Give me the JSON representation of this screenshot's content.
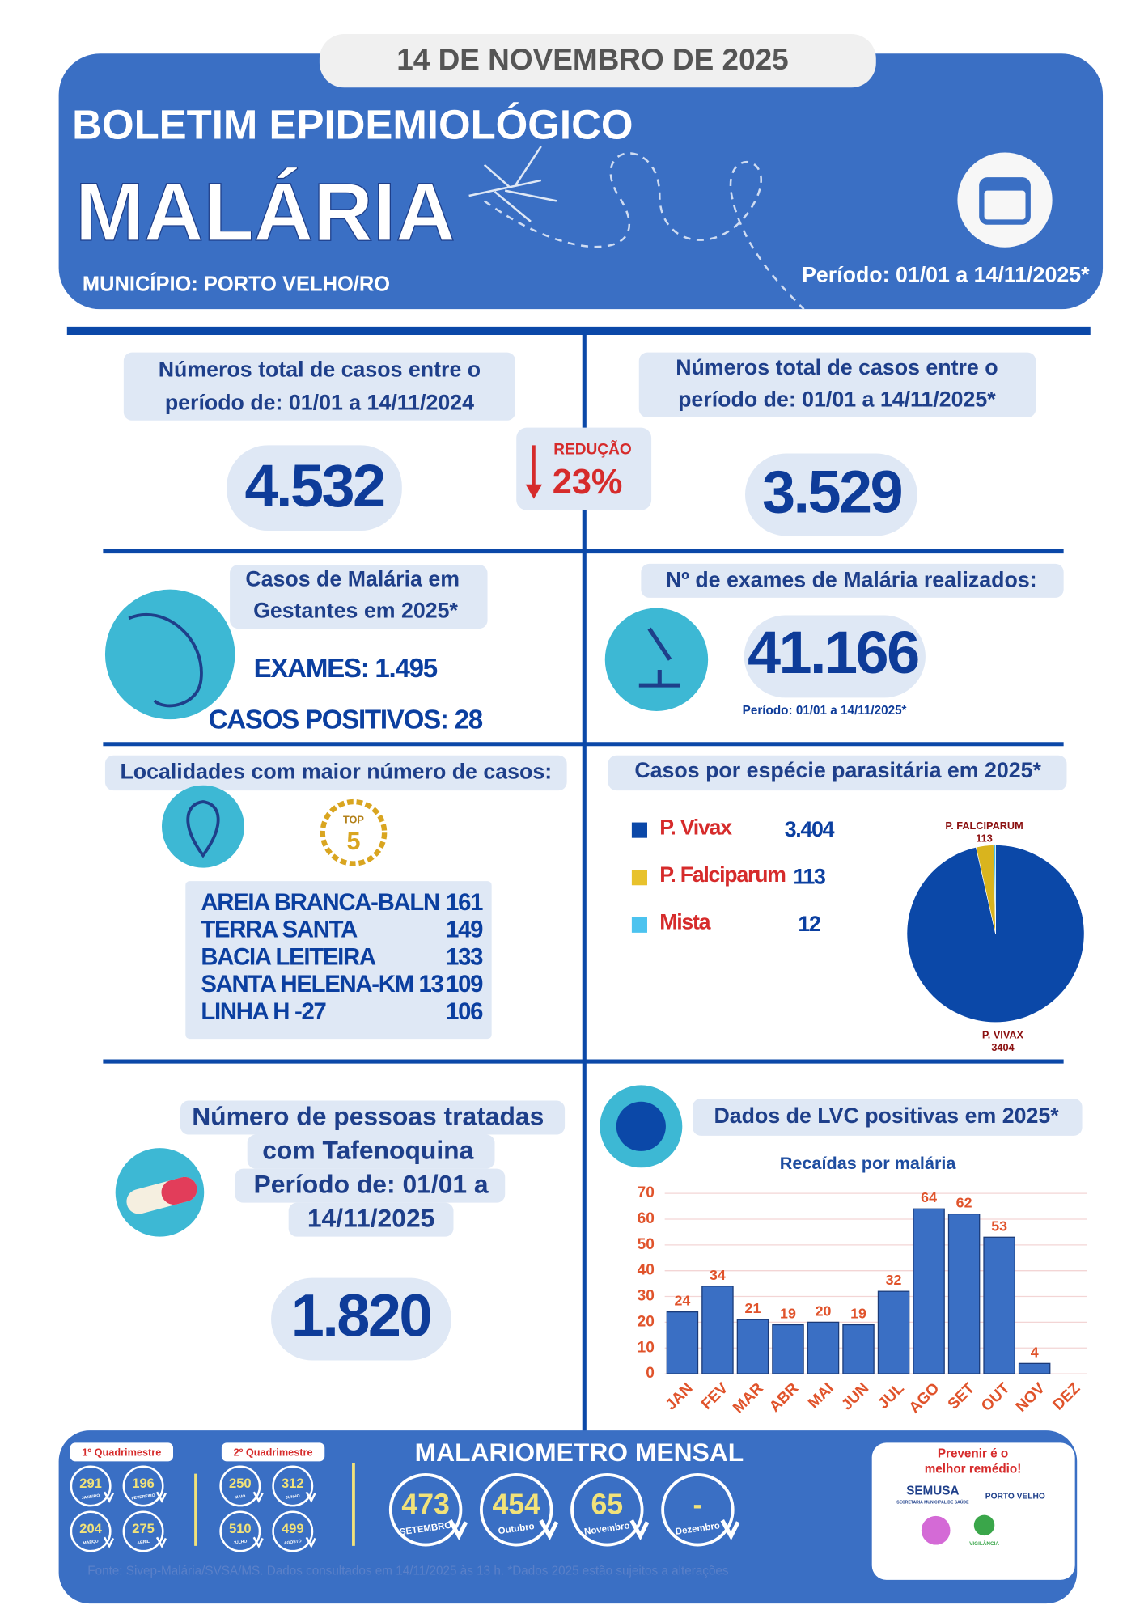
{
  "header": {
    "date": "14 DE NOVEMBRO DE 2025",
    "title": "BOLETIM EPIDEMIOLÓGICO",
    "disease": "MALÁRIA",
    "municipality": "MUNICÍPIO: PORTO VELHO/RO",
    "period": "Período: 01/01 a 14/11/2025*"
  },
  "totals": {
    "previous": {
      "label": [
        "Números total de casos entre o",
        "período de: 01/01 a 14/11/2024"
      ],
      "value": "4.532"
    },
    "current": {
      "label": [
        "Números total de casos entre o",
        "período de: 01/01 a 14/11/2025*"
      ],
      "value": "3.529"
    },
    "change": {
      "label": "REDUÇÃO",
      "value": "23%"
    }
  },
  "pregnant": {
    "label": [
      "Casos de Malária em",
      "Gestantes em 2025*"
    ],
    "exams": "EXAMES: 1.495",
    "positives": "CASOS POSITIVOS: 28"
  },
  "exams": {
    "label": "Nº de exames de Malária realizados:",
    "value": "41.166",
    "period": "Período: 01/01 a 14/11/2025*"
  },
  "localities": {
    "title": "Localidades com maior número de casos:",
    "badge": [
      "TOP",
      "5"
    ],
    "rows": [
      [
        "AREIA BRANCA-BALN",
        "161"
      ],
      [
        "TERRA SANTA",
        "149"
      ],
      [
        "BACIA LEITEIRA",
        "133"
      ],
      [
        "SANTA HELENA-KM 13",
        "109"
      ],
      [
        "LINHA H -27",
        "106"
      ]
    ]
  },
  "species": {
    "title": "Casos por espécie parasitária em 2025*",
    "legend": [
      {
        "name": "P. Vivax",
        "value": "3.404",
        "color": "#0b48a8"
      },
      {
        "name": "P. Falciparum",
        "value": "113",
        "color": "#e8c22c"
      },
      {
        "name": "Mista",
        "value": "12",
        "color": "#4cc3ef"
      }
    ]
  },
  "treated": {
    "label": [
      "Número de pessoas tratadas",
      "com Tafenoquina",
      "Período de: 01/01 a",
      "14/11/2025"
    ],
    "value": "1.820"
  },
  "lvc": {
    "title": "Dados de LVC positivas em 2025*"
  },
  "chart_data": [
    {
      "type": "pie",
      "categories": [
        "P. VIVAX",
        "P. FALCIPARUM",
        null
      ],
      "values": [
        3404,
        113,
        12
      ],
      "colors": [
        "#0b48a8",
        "#d9b41e",
        "#4cc3ef"
      ]
    },
    {
      "type": "bar",
      "title": "Recaídas por malária",
      "categories": [
        "JAN",
        "FEV",
        "MAR",
        "ABR",
        "MAI",
        "JUN",
        "JUL",
        "AGO",
        "SET",
        "OUT",
        "NOV",
        "DEZ"
      ],
      "values": [
        24,
        34,
        21,
        19,
        20,
        19,
        32,
        64,
        62,
        53,
        4,
        null
      ],
      "color": "#3a6fc4",
      "ylim": [
        0,
        70
      ],
      "yticks": [
        0,
        10,
        20,
        30,
        40,
        50,
        60,
        70
      ],
      "grid": true
    }
  ],
  "footer": {
    "q1": {
      "label": "1º Quadrimestre",
      "items": [
        {
          "value": "291",
          "month": "JANEIRO"
        },
        {
          "value": "196",
          "month": "FEVEREIRO"
        },
        {
          "value": "204",
          "month": "MARÇO"
        },
        {
          "value": "275",
          "month": "ABRIL"
        }
      ]
    },
    "q2": {
      "label": "2º Quadrimestre",
      "items": [
        {
          "value": "250",
          "month": "MAIO"
        },
        {
          "value": "312",
          "month": "JUNHO"
        },
        {
          "value": "510",
          "month": "JULHO"
        },
        {
          "value": "499",
          "month": "AGOSTO"
        }
      ]
    },
    "meter": {
      "title": "MALARIOMETRO MENSAL",
      "items": [
        {
          "value": "473",
          "month": "SETEMBRO"
        },
        {
          "value": "454",
          "month": "Outubro"
        },
        {
          "value": "65",
          "month": "Novembro"
        },
        {
          "value": "-",
          "month": "Dezembro"
        }
      ]
    },
    "slogan": [
      "Prevenir é o",
      "melhor remédio!"
    ],
    "logos": [
      "SEMUSA",
      "SECRETARIA MUNICIPAL DE SAÚDE",
      "PORTO VELHO",
      "VIGILÂNCIA"
    ],
    "source": "Fonte: Sivep-Malária/SVSA/MS. Dados consultados em 14/11/2025 às 13 h. *Dados 2025 estão sujeitos a alterações"
  }
}
